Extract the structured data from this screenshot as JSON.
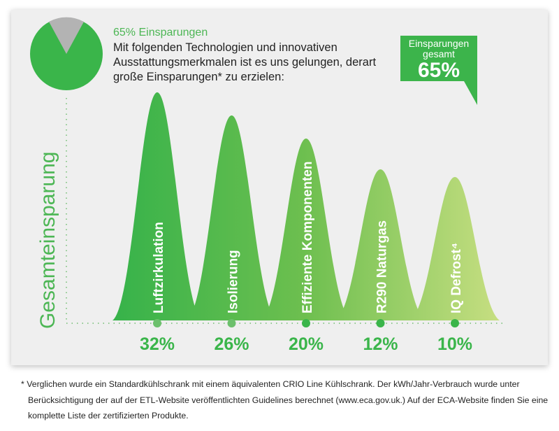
{
  "header": {
    "title": "65% Einsparungen",
    "description": "Mit folgenden Technologien und innovativen Ausstattungsmerkmalen ist es uns gelungen, derart große Einsparungen* zu erzielen:"
  },
  "bubble": {
    "line1": "Einsparungen",
    "line2": "gesamt",
    "value": "65%"
  },
  "footnote": "* Verglichen wurde ein Standardkühlschrank mit einem äquivalenten CRIO Line Kühlschrank.  Der kWh/Jahr-Verbrauch  wurde unter Berücksichtigung der auf der ETL-Website veröffentlichten Guidelines berechnet (www.eca.gov.uk.) Auf der ECA-Website finden Sie eine komplette Liste der zertifizierten Produkte.",
  "colors": {
    "primary": "#3ab54a",
    "light": "#c5de7f",
    "pie_rest": "#b3b3b3",
    "background": "#efefef"
  },
  "chart_data": {
    "type": "bar",
    "ylabel": "Gesamteinsparung",
    "categories": [
      "Luftzirkulation",
      "Isolierung",
      "Effiziente Komponenten",
      "R290 Naturgas",
      "IQ Defrost⁴"
    ],
    "values": [
      32,
      26,
      20,
      12,
      10
    ],
    "value_labels": [
      "32%",
      "26%",
      "20%",
      "12%",
      "10%"
    ],
    "total": "65%"
  }
}
